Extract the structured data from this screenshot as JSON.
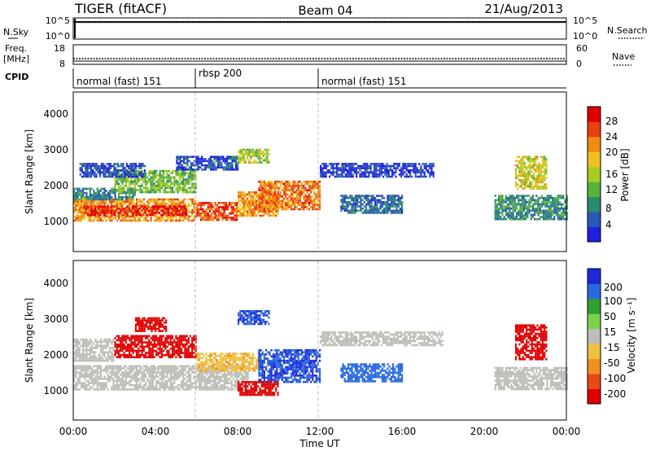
{
  "header": {
    "title": "TIGER (fitACF)",
    "beam": "Beam 04",
    "date": "21/Aug/2013"
  },
  "top_panels": {
    "nsky_label": "N.Sky",
    "nsky_ticks": [
      "10^5",
      "10^0"
    ],
    "nsearch_label": "N.Search",
    "nsearch_ticks": [
      "10^5",
      "10^0"
    ],
    "freq_label": "Freq.",
    "freq_unit": "[MHz]",
    "freq_ticks": [
      "18",
      "8"
    ],
    "nave_label": "Nave",
    "nave_ticks": [
      "60",
      "0"
    ],
    "cpid_label": "CPID",
    "cpid_segments": [
      "normal (fast) 151",
      "rbsp 200",
      "normal (fast) 151"
    ]
  },
  "time_axis": {
    "label": "Time UT",
    "ticks": [
      "00:00",
      "04:00",
      "08:00",
      "12:00",
      "16:00",
      "20:00",
      "00:00"
    ]
  },
  "range_axis": {
    "label": "Slant Range [km]",
    "ticks": [
      "1000",
      "2000",
      "3000",
      "4000"
    ]
  },
  "power_scale": {
    "label": "Power [dB]",
    "ticks": [
      "4",
      "8",
      "12",
      "16",
      "20",
      "24",
      "28"
    ],
    "colors": [
      "#1f1fe0",
      "#2a58b8",
      "#2a8a70",
      "#58b23c",
      "#a8cc20",
      "#f0c020",
      "#f08a10",
      "#e84010",
      "#e00000"
    ]
  },
  "velocity_scale": {
    "label": "Velocity [m s⁻¹]",
    "ticks": [
      "200",
      "100",
      "50",
      "15",
      "-15",
      "-50",
      "-100",
      "-200"
    ],
    "colors": [
      "#1e2ad8",
      "#2a6ae0",
      "#30a030",
      "#7ad24a",
      "#bebeb8",
      "#f0c040",
      "#f09020",
      "#e84818",
      "#e00000"
    ]
  },
  "chart_data": {
    "type": "heatmap",
    "x_unit": "hours UT",
    "xlim": [
      0,
      24
    ],
    "ylim": [
      0,
      4500
    ],
    "power_panel": {
      "patches": [
        {
          "t0": 0.0,
          "t1": 6.0,
          "r0": 900,
          "r1": 1500,
          "value": 22
        },
        {
          "t0": 0.5,
          "t1": 5.5,
          "r0": 1050,
          "r1": 1300,
          "value": 28
        },
        {
          "t0": 6.0,
          "t1": 8.0,
          "r0": 900,
          "r1": 1400,
          "value": 26
        },
        {
          "t0": 8.0,
          "t1": 10.0,
          "r0": 1000,
          "r1": 1700,
          "value": 22
        },
        {
          "t0": 9.0,
          "t1": 12.0,
          "r0": 1200,
          "r1": 2000,
          "value": 24
        },
        {
          "t0": 0.0,
          "t1": 3.0,
          "r0": 1500,
          "r1": 1800,
          "value": 10
        },
        {
          "t0": 2.0,
          "t1": 6.0,
          "r0": 1700,
          "r1": 2300,
          "value": 14
        },
        {
          "t0": 0.3,
          "t1": 3.5,
          "r0": 2100,
          "r1": 2500,
          "value": 6
        },
        {
          "t0": 5.0,
          "t1": 8.0,
          "r0": 2300,
          "r1": 2700,
          "value": 6
        },
        {
          "t0": 8.0,
          "t1": 9.5,
          "r0": 2500,
          "r1": 2900,
          "value": 16
        },
        {
          "t0": 12.0,
          "t1": 17.5,
          "r0": 2100,
          "r1": 2500,
          "value": 5
        },
        {
          "t0": 13.0,
          "t1": 16.0,
          "r0": 1100,
          "r1": 1600,
          "value": 8
        },
        {
          "t0": 20.5,
          "t1": 24.0,
          "r0": 900,
          "r1": 1600,
          "value": 10
        },
        {
          "t0": 21.5,
          "t1": 23.0,
          "r0": 1800,
          "r1": 2700,
          "value": 18
        }
      ]
    },
    "velocity_panel": {
      "patches": [
        {
          "t0": 0.0,
          "t1": 8.5,
          "r0": 850,
          "r1": 1550,
          "value": 0
        },
        {
          "t0": 12.0,
          "t1": 18.0,
          "r0": 2100,
          "r1": 2500,
          "value": 0
        },
        {
          "t0": 20.5,
          "t1": 24.0,
          "r0": 900,
          "r1": 1500,
          "value": 0
        },
        {
          "t0": 2.0,
          "t1": 6.0,
          "r0": 1800,
          "r1": 2400,
          "value": -200
        },
        {
          "t0": 3.0,
          "t1": 4.5,
          "r0": 2500,
          "r1": 2900,
          "value": -200
        },
        {
          "t0": 6.0,
          "t1": 9.0,
          "r0": 1400,
          "r1": 1900,
          "value": -40
        },
        {
          "t0": 9.0,
          "t1": 12.0,
          "r0": 1100,
          "r1": 2000,
          "value": 200
        },
        {
          "t0": 8.0,
          "t1": 9.5,
          "r0": 2700,
          "r1": 3100,
          "value": 200
        },
        {
          "t0": 8.0,
          "t1": 10.0,
          "r0": 700,
          "r1": 1100,
          "value": -200
        },
        {
          "t0": 13.0,
          "t1": 16.0,
          "r0": 1100,
          "r1": 1600,
          "value": 150
        },
        {
          "t0": 21.5,
          "t1": 23.0,
          "r0": 1700,
          "r1": 2700,
          "value": -200
        },
        {
          "t0": 0.0,
          "t1": 2.0,
          "r0": 1700,
          "r1": 2300,
          "value": 0
        }
      ]
    }
  }
}
